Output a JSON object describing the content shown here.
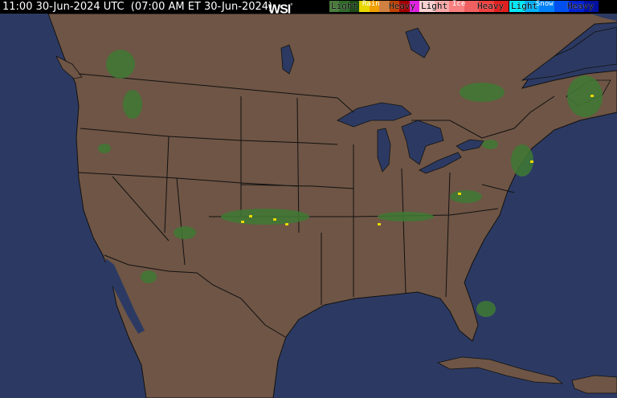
{
  "header": {
    "timestamp": "11:00 30-Jun-2024 UTC  (07:00 AM ET 30-Jun-2024)",
    "logo": "WSI",
    "logo_mark": "°"
  },
  "legend": {
    "rain": {
      "title": "Rain",
      "light": "Light",
      "heavy": "Heavy",
      "colors": [
        "#4a7a3c",
        "#2e6a28",
        "#1e4a18",
        "#e8d800",
        "#f0a000",
        "#d08040",
        "#c04000",
        "#a00000",
        "#e020e0"
      ]
    },
    "ice": {
      "title": "Ice",
      "light": "Light",
      "heavy": "Heavy",
      "colors": [
        "#f8d0d0",
        "#f8a8a8",
        "#f88080",
        "#f06060",
        "#f04040",
        "#e02020"
      ]
    },
    "snow": {
      "title": "Snow",
      "light": "Light",
      "heavy": "Heavy",
      "colors": [
        "#00e8f8",
        "#00b0f8",
        "#0080f8",
        "#0050f0",
        "#0020d0",
        "#0010a0"
      ]
    }
  },
  "map": {
    "land_color": "#6e5545",
    "water_color": "#2c3a63",
    "border_color": "#111111",
    "radar_light": "#3f7a34",
    "radar_medium": "#2a5f22",
    "radar_heavy": "#e8d800"
  }
}
